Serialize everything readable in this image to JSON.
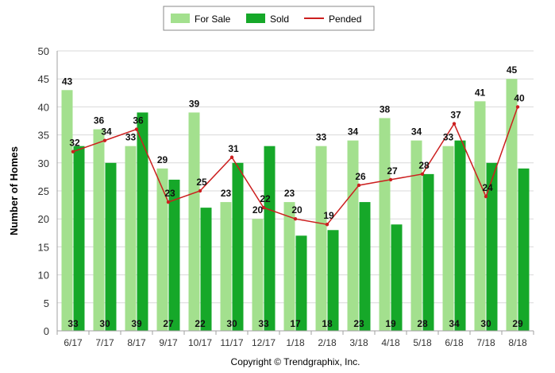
{
  "chart_data": {
    "type": "bar",
    "categories": [
      "6/17",
      "7/17",
      "8/17",
      "9/17",
      "10/17",
      "11/17",
      "12/17",
      "1/18",
      "2/18",
      "3/18",
      "4/18",
      "5/18",
      "6/18",
      "7/18",
      "8/18"
    ],
    "series": [
      {
        "name": "For Sale",
        "type": "bar",
        "color": "#a3e08e",
        "values": [
          43,
          36,
          33,
          29,
          39,
          23,
          20,
          23,
          33,
          34,
          38,
          34,
          33,
          41,
          45
        ]
      },
      {
        "name": "Sold",
        "type": "bar",
        "color": "#16a829",
        "values": [
          33,
          30,
          39,
          27,
          22,
          30,
          33,
          17,
          18,
          23,
          19,
          28,
          34,
          30,
          29
        ]
      },
      {
        "name": "Pended",
        "type": "line",
        "color": "#cc1f1f",
        "values": [
          32,
          34,
          36,
          23,
          25,
          31,
          22,
          20,
          19,
          26,
          27,
          28,
          37,
          24,
          40
        ]
      }
    ],
    "ylabel": "Number of Homes",
    "xlabel": "",
    "ylim": [
      0,
      50
    ],
    "yticks": [
      0,
      5,
      10,
      15,
      20,
      25,
      30,
      35,
      40,
      45,
      50
    ],
    "grid": true,
    "legend_position": "top-center"
  },
  "footer": {
    "copyright": "Copyright © Trendgraphix, Inc."
  }
}
